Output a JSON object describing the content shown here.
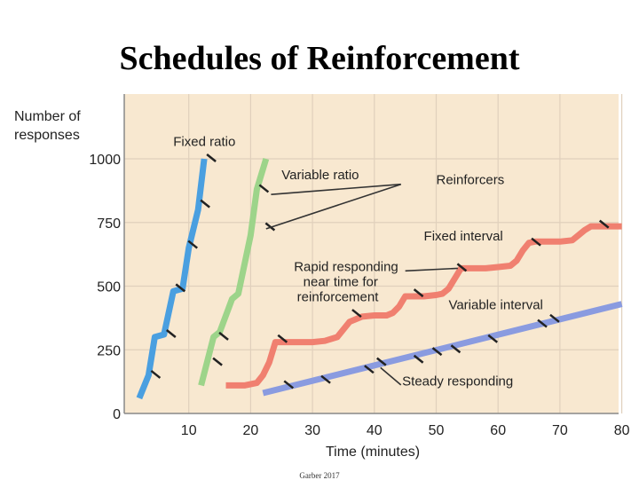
{
  "title": "Schedules of Reinforcement",
  "footer": "Garber 2017",
  "chart_data": {
    "type": "line",
    "xlabel": "Time (minutes)",
    "ylabel": [
      "Number of",
      "responses"
    ],
    "xlim": [
      0,
      80
    ],
    "ylim": [
      0,
      1000
    ],
    "xticks": [
      10,
      20,
      30,
      40,
      50,
      60,
      70,
      80
    ],
    "yticks": [
      0,
      250,
      500,
      750,
      1000
    ],
    "grid": true,
    "background": "#f8e8d0",
    "series": [
      {
        "name": "Fixed ratio",
        "color": "#4a9fe0",
        "x": [
          2,
          3.5,
          4.5,
          6,
          7.5,
          9,
          10,
          11.5,
          12.5
        ],
        "y": [
          60,
          150,
          300,
          310,
          480,
          490,
          650,
          800,
          1000
        ],
        "reinforcers_x": [
          3.5,
          6,
          7.5,
          9.5,
          11.5,
          12.5
        ],
        "reinforcers_y": [
          150,
          310,
          490,
          660,
          820,
          1000
        ]
      },
      {
        "name": "Variable ratio",
        "color": "#9dd48a",
        "x": [
          12,
          14,
          15,
          17,
          18,
          20,
          21,
          22.5
        ],
        "y": [
          110,
          300,
          320,
          450,
          470,
          700,
          880,
          1000
        ],
        "reinforcers_x": [
          13.5,
          14.5,
          21,
          22
        ],
        "reinforcers_y": [
          200,
          300,
          880,
          730
        ],
        "reinforcers_shown_x": [
          21.3,
          21.3
        ],
        "reinforcers_shown_y": [
          880,
          730
        ]
      },
      {
        "name": "Fixed interval",
        "color": "#f08070",
        "x": [
          16,
          19,
          21,
          22,
          23,
          24,
          30,
          32,
          34,
          36,
          38,
          40,
          42,
          43,
          44,
          45,
          48,
          50,
          51,
          52,
          53,
          54,
          58,
          60,
          62,
          63,
          64,
          65,
          66,
          70,
          72,
          73,
          74,
          75,
          76,
          80
        ],
        "y": [
          110,
          110,
          120,
          150,
          200,
          280,
          280,
          285,
          300,
          360,
          380,
          385,
          385,
          395,
          420,
          460,
          460,
          465,
          470,
          490,
          530,
          570,
          570,
          575,
          580,
          600,
          640,
          670,
          675,
          675,
          680,
          700,
          720,
          735,
          735,
          735
        ],
        "reinforcers_x": [
          24,
          36,
          46,
          53,
          65,
          76
        ],
        "reinforcers_y": [
          290,
          390,
          470,
          570,
          670,
          740
        ]
      },
      {
        "name": "Variable interval",
        "color": "#8a9be0",
        "x": [
          22,
          80
        ],
        "y": [
          80,
          430
        ],
        "reinforcers_x": [
          25,
          31,
          38,
          40,
          46,
          49,
          52,
          58,
          66,
          68
        ],
        "reinforcers_y": [
          110,
          130,
          170,
          200,
          210,
          240,
          250,
          290,
          350,
          370
        ]
      }
    ],
    "annotations": [
      {
        "text": "Fixed ratio",
        "x": 7.5,
        "y": 1050
      },
      {
        "text": "Variable ratio",
        "x": 25,
        "y": 920
      },
      {
        "text": "Reinforcers",
        "x": 50,
        "y": 900
      },
      {
        "text": "Fixed interval",
        "x": 48,
        "y": 680
      },
      {
        "text": "Rapid responding",
        "x": 27,
        "y": 560
      },
      {
        "text": "near time for",
        "x": 28.5,
        "y": 500
      },
      {
        "text": "reinforcement",
        "x": 27.5,
        "y": 440
      },
      {
        "text": "Variable interval",
        "x": 52,
        "y": 410
      },
      {
        "text": "Steady responding",
        "x": 44.5,
        "y": 110
      }
    ]
  }
}
